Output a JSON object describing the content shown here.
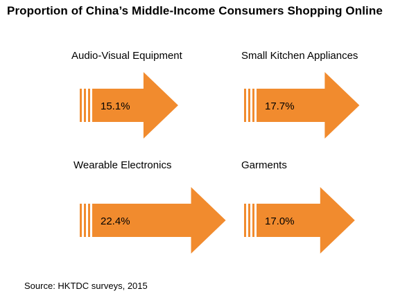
{
  "colors": {
    "arrow": "#F18B2E",
    "text": "#000000",
    "background": "#FFFFFF"
  },
  "chart_data": {
    "type": "bar",
    "title": "Proportion  of China’s Middle-Income  Consumers  Shopping  Online",
    "categories": [
      "Audio-Visual Equipment",
      "Small Kitchen Appliances",
      "Wearable Electronics",
      "Garments"
    ],
    "values": [
      15.1,
      17.7,
      22.4,
      17.0
    ],
    "value_labels": [
      "15.1%",
      "17.7%",
      "22.4%",
      "17.0%"
    ],
    "unit": "%",
    "encoding": "arrow length proportional to value"
  },
  "source": "Source: HKTDC surveys, 2015"
}
